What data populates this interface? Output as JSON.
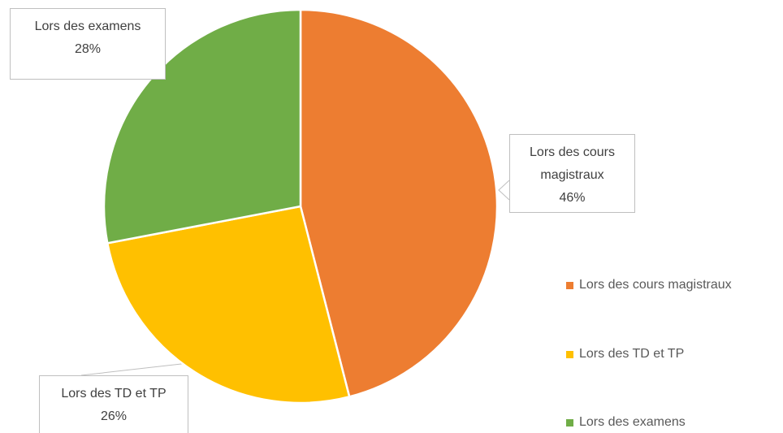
{
  "chart_data": {
    "type": "pie",
    "categories": [
      "Lors des cours magistraux",
      "Lors des TD et TP",
      "Lors des examens"
    ],
    "values": [
      46,
      26,
      28
    ],
    "value_labels": [
      "46%",
      "26%",
      "28%"
    ],
    "colors": [
      "#ED7D31",
      "#FFC000",
      "#70AD47"
    ],
    "legend": "right"
  }
}
